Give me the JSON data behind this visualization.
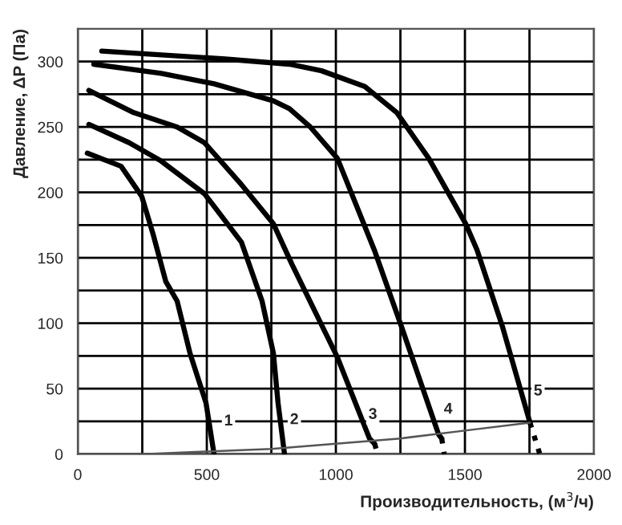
{
  "chart_data": {
    "type": "line",
    "xlabel": "Производительность, (м$^{3}$/ч)",
    "ylabel": "Давление, ΔP (Па)",
    "xlim": [
      0,
      2000
    ],
    "ylim": [
      0,
      325
    ],
    "xticks": [
      0,
      {
        "value": 250,
        "label": null
      },
      500,
      {
        "value": 750,
        "label": null
      },
      1000,
      {
        "value": 1250,
        "label": null
      },
      1500,
      {
        "value": 1750,
        "label": null
      },
      2000
    ],
    "yticks": [
      0,
      {
        "value": 25,
        "label": null
      },
      50,
      {
        "value": 75,
        "label": null
      },
      100,
      {
        "value": 125,
        "label": null
      },
      150,
      {
        "value": 175,
        "label": null
      },
      200,
      {
        "value": 225,
        "label": null
      },
      250,
      {
        "value": 275,
        "label": null
      },
      300
    ],
    "grid": true,
    "marker": "none",
    "line_style": "solid",
    "series": [
      {
        "color": "#000000",
        "x": [
          37,
          168,
          248,
          292,
          341,
          385,
          435,
          497,
          528
        ],
        "values": [
          230,
          220,
          197,
          168,
          132,
          117,
          77,
          39,
          0
        ]
      },
      {
        "color": "#000000",
        "x": [
          43,
          199,
          323,
          491,
          634,
          714,
          758,
          776,
          801
        ],
        "values": [
          252,
          238,
          224,
          199,
          162,
          117,
          77,
          39,
          0
        ]
      },
      {
        "color": "#000000",
        "x": [
          43,
          217,
          385,
          491,
          634,
          758,
          830,
          1006,
          1130,
          1150
        ],
        "values": [
          278,
          261,
          250,
          238,
          206,
          176,
          145,
          74,
          12,
          8
        ]
      },
      {
        "color": "#000000",
        "x": [
          62,
          323,
          528,
          758,
          820,
          901,
          1006,
          1149,
          1255,
          1398,
          1410
        ],
        "values": [
          298,
          291,
          283,
          270,
          264,
          250,
          226,
          156,
          97,
          15,
          12
        ]
      },
      {
        "color": "#000000",
        "x": [
          93,
          571,
          820,
          944,
          1112,
          1236,
          1360,
          1503,
          1547,
          1646,
          1752
        ],
        "values": [
          308,
          302,
          298,
          293,
          281,
          261,
          226,
          176,
          156,
          97,
          24
        ]
      },
      {
        "color": "#000000",
        "line_style": "dotted",
        "x": [
          1150,
          1162
        ],
        "values": [
          8,
          0
        ]
      },
      {
        "color": "#000000",
        "line_style": "dotted",
        "x": [
          1410,
          1420
        ],
        "values": [
          12,
          0
        ]
      },
      {
        "color": "#000000",
        "line_style": "dotted",
        "x": [
          1752,
          1790
        ],
        "values": [
          24,
          0
        ]
      },
      {
        "color": "#555555",
        "x": [
          0,
          250,
          500,
          750,
          1000,
          1250,
          1500,
          1752
        ],
        "values": [
          0,
          0,
          2,
          4,
          8,
          12,
          18,
          24
        ]
      }
    ],
    "annotations": [
      {
        "text": "1",
        "x": 584,
        "y": 25
      },
      {
        "text": "2",
        "x": 839,
        "y": 26
      },
      {
        "text": "3",
        "x": 1143,
        "y": 30
      },
      {
        "text": "4",
        "x": 1435,
        "y": 34
      },
      {
        "text": "5",
        "x": 1783,
        "y": 48
      }
    ]
  }
}
